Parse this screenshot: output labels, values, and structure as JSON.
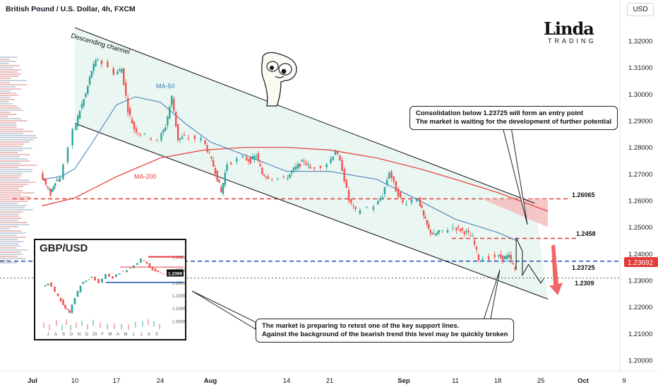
{
  "header": {
    "title": "British Pound / U.S. Dollar, 4h, FXCM",
    "currency_button": "USD"
  },
  "logo": {
    "top": "Linda",
    "bottom": "TRADING"
  },
  "annotations": {
    "channel_label": "Descending channel",
    "ma50_label": "MA-50",
    "ma200_label": "MA-200",
    "callout_top": [
      "Consolidation below 1.23725 will form an entry point",
      "The market is waiting for the development of further potential"
    ],
    "callout_bottom": [
      "The market is preparing to retest one of the key support lines.",
      "Against the background of the bearish trend this level may be quickly broken"
    ],
    "level_labels": [
      "1.26065",
      "1.2458",
      "1.23725",
      "1.2309"
    ],
    "current_price_label": "1.23692"
  },
  "chart_data": {
    "type": "line",
    "title": "British Pound / U.S. Dollar, 4h, FXCM",
    "x_ticks": [
      "Jul",
      "10",
      "17",
      "24",
      "Aug",
      "14",
      "21",
      "Sep",
      "11",
      "18",
      "25",
      "Oct",
      "9"
    ],
    "y_ticks": [
      "1.32000",
      "1.31000",
      "1.30000",
      "1.29000",
      "1.28000",
      "1.27000",
      "1.26000",
      "1.25000",
      "1.24000",
      "1.23000",
      "1.22000",
      "1.21000",
      "1.20000"
    ],
    "ylim": [
      1.195,
      1.328
    ],
    "current_price": 1.23692,
    "levels": [
      {
        "value": 1.26065,
        "color": "#e53935",
        "style": "dashed"
      },
      {
        "value": 1.2458,
        "color": "#e53935",
        "style": "dashed"
      },
      {
        "value": 1.23725,
        "color": "#1e4fa8",
        "style": "dashed"
      },
      {
        "value": 1.2309,
        "color": "#555555",
        "style": "dotted"
      }
    ],
    "price_path": [
      {
        "x": "Jul 3",
        "y": 1.27
      },
      {
        "x": "Jul 4",
        "y": 1.266
      },
      {
        "x": "Jul 5",
        "y": 1.2625
      },
      {
        "x": "Jul 6",
        "y": 1.2675
      },
      {
        "x": "Jul 7",
        "y": 1.268
      },
      {
        "x": "Jul 10",
        "y": 1.286
      },
      {
        "x": "Jul 11",
        "y": 1.294
      },
      {
        "x": "Jul 12",
        "y": 1.3
      },
      {
        "x": "Jul 13",
        "y": 1.309
      },
      {
        "x": "Jul 14",
        "y": 1.3135
      },
      {
        "x": "Jul 17",
        "y": 1.308
      },
      {
        "x": "Jul 18",
        "y": 1.3095
      },
      {
        "x": "Jul 19",
        "y": 1.294
      },
      {
        "x": "Jul 20",
        "y": 1.287
      },
      {
        "x": "Jul 21",
        "y": 1.285
      },
      {
        "x": "Jul 24",
        "y": 1.283
      },
      {
        "x": "Jul 25",
        "y": 1.288
      },
      {
        "x": "Jul 26",
        "y": 1.299
      },
      {
        "x": "Jul 27",
        "y": 1.283
      },
      {
        "x": "Jul 28",
        "y": 1.284
      },
      {
        "x": "Jul 31",
        "y": 1.283
      },
      {
        "x": "Aug 1",
        "y": 1.277
      },
      {
        "x": "Aug 2",
        "y": 1.271
      },
      {
        "x": "Aug 3",
        "y": 1.263
      },
      {
        "x": "Aug 4",
        "y": 1.274
      },
      {
        "x": "Aug 7",
        "y": 1.276
      },
      {
        "x": "Aug 8",
        "y": 1.275
      },
      {
        "x": "Aug 9",
        "y": 1.277
      },
      {
        "x": "Aug 10",
        "y": 1.27
      },
      {
        "x": "Aug 11",
        "y": 1.269
      },
      {
        "x": "Aug 14",
        "y": 1.268
      },
      {
        "x": "Aug 15",
        "y": 1.271
      },
      {
        "x": "Aug 16",
        "y": 1.273
      },
      {
        "x": "Aug 17",
        "y": 1.275
      },
      {
        "x": "Aug 18",
        "y": 1.272
      },
      {
        "x": "Aug 21",
        "y": 1.274
      },
      {
        "x": "Aug 22",
        "y": 1.279
      },
      {
        "x": "Aug 23",
        "y": 1.272
      },
      {
        "x": "Aug 24",
        "y": 1.26
      },
      {
        "x": "Aug 25",
        "y": 1.256
      },
      {
        "x": "Aug 28",
        "y": 1.258
      },
      {
        "x": "Aug 29",
        "y": 1.262
      },
      {
        "x": "Aug 30",
        "y": 1.271
      },
      {
        "x": "Aug 31",
        "y": 1.264
      },
      {
        "x": "Sep 1",
        "y": 1.259
      },
      {
        "x": "Sep 4",
        "y": 1.261
      },
      {
        "x": "Sep 5",
        "y": 1.254
      },
      {
        "x": "Sep 6",
        "y": 1.249
      },
      {
        "x": "Sep 7",
        "y": 1.247
      },
      {
        "x": "Sep 8",
        "y": 1.248
      },
      {
        "x": "Sep 11",
        "y": 1.25
      },
      {
        "x": "Sep 12",
        "y": 1.249
      },
      {
        "x": "Sep 13",
        "y": 1.248
      },
      {
        "x": "Sep 14",
        "y": 1.246
      },
      {
        "x": "Sep 15",
        "y": 1.238
      },
      {
        "x": "Sep 18",
        "y": 1.239
      },
      {
        "x": "Sep 19",
        "y": 1.2385
      },
      {
        "x": "Sep 20",
        "y": 1.239
      },
      {
        "x": "Sep 21",
        "y": 1.234
      }
    ],
    "ma50_path": [
      {
        "x": "Jul 3",
        "y": 1.268
      },
      {
        "x": "Jul 7",
        "y": 1.269
      },
      {
        "x": "Jul 10",
        "y": 1.272
      },
      {
        "x": "Jul 13",
        "y": 1.282
      },
      {
        "x": "Jul 17",
        "y": 1.296
      },
      {
        "x": "Jul 20",
        "y": 1.299
      },
      {
        "x": "Jul 24",
        "y": 1.297
      },
      {
        "x": "Jul 28",
        "y": 1.289
      },
      {
        "x": "Aug 1",
        "y": 1.282
      },
      {
        "x": "Aug 7",
        "y": 1.277
      },
      {
        "x": "Aug 14",
        "y": 1.271
      },
      {
        "x": "Aug 21",
        "y": 1.271
      },
      {
        "x": "Aug 28",
        "y": 1.268
      },
      {
        "x": "Sep 4",
        "y": 1.26
      },
      {
        "x": "Sep 11",
        "y": 1.253
      },
      {
        "x": "Sep 18",
        "y": 1.248
      },
      {
        "x": "Sep 21",
        "y": 1.245
      }
    ],
    "ma200_path": [
      {
        "x": "Jul 3",
        "y": 1.258
      },
      {
        "x": "Jul 10",
        "y": 1.261
      },
      {
        "x": "Jul 17",
        "y": 1.269
      },
      {
        "x": "Jul 24",
        "y": 1.276
      },
      {
        "x": "Jul 31",
        "y": 1.279
      },
      {
        "x": "Aug 7",
        "y": 1.28
      },
      {
        "x": "Aug 14",
        "y": 1.28
      },
      {
        "x": "Aug 21",
        "y": 1.279
      },
      {
        "x": "Aug 28",
        "y": 1.276
      },
      {
        "x": "Sep 4",
        "y": 1.272
      },
      {
        "x": "Sep 11",
        "y": 1.268
      },
      {
        "x": "Sep 18",
        "y": 1.263
      },
      {
        "x": "Sep 26",
        "y": 1.256
      }
    ],
    "projection_path": [
      {
        "x": "Sep 21",
        "y": 1.234
      },
      {
        "x": "Sep 21",
        "y": 1.246
      },
      {
        "x": "Sep 22",
        "y": 1.241
      },
      {
        "x": "Sep 22",
        "y": 1.232
      },
      {
        "x": "Sep 23",
        "y": 1.236
      },
      {
        "x": "Sep 25",
        "y": 1.229
      }
    ],
    "channel_upper": [
      {
        "x": "Jul 10",
        "y": 1.325
      },
      {
        "x": "Sep 24",
        "y": 1.259
      }
    ],
    "channel_lower": [
      {
        "x": "Jul 10",
        "y": 1.289
      },
      {
        "x": "Sep 26",
        "y": 1.223
      }
    ],
    "sell_zone": {
      "from": "Sep 20",
      "to": "Sep 26",
      "top": 1.26065,
      "bottom": 1.25
    }
  },
  "inset": {
    "title": "GBP/USD",
    "y_ticks": [
      "1.3000",
      "1.2500",
      "1.2000",
      "1.1500",
      "1.1000",
      "1.0500"
    ],
    "x_ticks": [
      "J",
      "A",
      "S",
      "O",
      "N",
      "D",
      "23",
      "F",
      "M",
      "A",
      "M",
      "J",
      "J",
      "A",
      "S"
    ],
    "highlight_label": "1.2369"
  },
  "colors": {
    "up": "#26a69a",
    "down": "#ef5350",
    "ma50": "#3b78b5",
    "ma200": "#e53935",
    "channel_fill": "#e6f4ee",
    "sell_zone": "#f4b9b9",
    "price_tag_bg": "#e53935"
  },
  "icons": [
    "meme-face-icon",
    "down-arrow-icon"
  ]
}
